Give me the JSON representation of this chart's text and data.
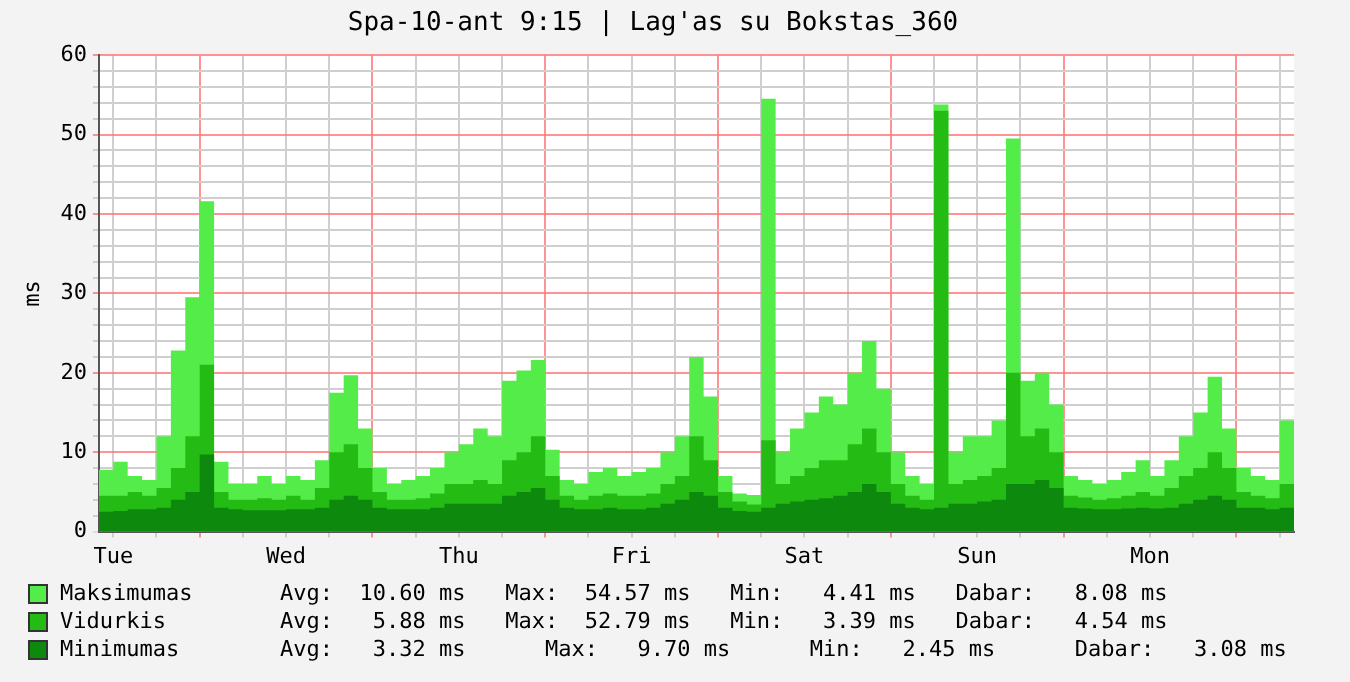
{
  "chart_data": {
    "type": "area",
    "title": "Spa-10-ant 9:15 | Lag'as su Bokstas_360",
    "ylabel": "ms",
    "categories": [
      null,
      "Tue",
      null,
      null,
      null,
      null,
      null,
      null,
      null,
      null,
      null,
      null,
      null,
      "Wed",
      null,
      null,
      null,
      null,
      null,
      null,
      null,
      null,
      null,
      null,
      null,
      "Thu",
      null,
      null,
      null,
      null,
      null,
      null,
      null,
      null,
      null,
      null,
      null,
      "Fri",
      null,
      null,
      null,
      null,
      null,
      null,
      null,
      null,
      null,
      null,
      null,
      "Sat",
      null,
      null,
      null,
      null,
      null,
      null,
      null,
      null,
      null,
      null,
      null,
      "Sun",
      null,
      null,
      null,
      null,
      null,
      null,
      null,
      null,
      null,
      null,
      null,
      "Mon",
      null,
      null,
      null,
      null,
      null,
      null,
      null,
      null,
      null,
      null
    ],
    "series": [
      {
        "name": "Maksimumas",
        "color": "#54ec48",
        "values": [
          7.8,
          8.8,
          7,
          6.5,
          12,
          22.8,
          29.5,
          41.6,
          8.8,
          6,
          6,
          7,
          6,
          7,
          6.5,
          9,
          17.5,
          19.7,
          13,
          8,
          6,
          6.5,
          7,
          8,
          10,
          11,
          13,
          12,
          19,
          20.3,
          21.6,
          10.3,
          6.5,
          6,
          7.5,
          8,
          7,
          7.5,
          8,
          10,
          12,
          22,
          17,
          7,
          4.8,
          4.6,
          54.5,
          10,
          13,
          15,
          17,
          16,
          20,
          24,
          18,
          10,
          7,
          6,
          53.8,
          10,
          12,
          12,
          14,
          49.5,
          19,
          20,
          16,
          7,
          6.5,
          6,
          6.5,
          7.5,
          9,
          7,
          9,
          12,
          15,
          19.5,
          13,
          8,
          7,
          6.5,
          14,
          8
        ]
      },
      {
        "name": "Vidurkis",
        "color": "#24bc14",
        "values": [
          4.5,
          4.5,
          5,
          4.5,
          5.5,
          8,
          12,
          21,
          5,
          4,
          4,
          4.2,
          4,
          4.5,
          4,
          5.5,
          10,
          11,
          8,
          5,
          4,
          4,
          4.2,
          4.8,
          6,
          6,
          6.5,
          6,
          9,
          10,
          12,
          7,
          4.5,
          4,
          4.5,
          4.8,
          4.5,
          4.5,
          4.8,
          6,
          7,
          12,
          9,
          5,
          3.8,
          3.4,
          11.5,
          6,
          7,
          8,
          9,
          9,
          11,
          13,
          10,
          6,
          4.5,
          4,
          53,
          6,
          6.5,
          7,
          8,
          20,
          12,
          13,
          10,
          4.5,
          4.3,
          4,
          4.2,
          4.5,
          5,
          4.5,
          5.5,
          7,
          8,
          10,
          8,
          5,
          4.5,
          4.2,
          6,
          4.5
        ]
      },
      {
        "name": "Minimumas",
        "color": "#0d8a0d",
        "values": [
          2.5,
          2.6,
          2.8,
          2.8,
          3,
          4,
          5,
          9.7,
          3,
          2.8,
          2.7,
          2.7,
          2.7,
          2.8,
          2.8,
          3,
          4,
          4.5,
          4,
          3,
          2.8,
          2.8,
          2.8,
          3,
          3.5,
          3.5,
          3.5,
          3.5,
          4.5,
          5,
          5.5,
          4,
          3,
          2.8,
          2.8,
          3,
          2.8,
          2.8,
          3,
          3.5,
          4,
          5,
          4.5,
          3,
          2.6,
          2.5,
          3,
          3.5,
          3.8,
          4,
          4.2,
          4.5,
          5,
          6,
          5,
          3.5,
          3,
          2.8,
          3,
          3.5,
          3.5,
          3.8,
          4,
          6,
          6,
          6.5,
          5.5,
          3,
          2.9,
          2.8,
          2.8,
          2.9,
          3,
          2.9,
          3,
          3.5,
          4,
          4.5,
          4,
          3,
          3,
          2.8,
          3,
          3
        ]
      }
    ],
    "ylim": [
      0,
      60
    ],
    "yticks": [
      0,
      {
        "value": 2,
        "label": null
      },
      {
        "value": 4,
        "label": null
      },
      {
        "value": 6,
        "label": null
      },
      {
        "value": 8,
        "label": null
      },
      10,
      {
        "value": 12,
        "label": null
      },
      {
        "value": 14,
        "label": null
      },
      {
        "value": 16,
        "label": null
      },
      {
        "value": 18,
        "label": null
      },
      20,
      {
        "value": 22,
        "label": null
      },
      {
        "value": 24,
        "label": null
      },
      {
        "value": 26,
        "label": null
      },
      {
        "value": 28,
        "label": null
      },
      30,
      {
        "value": 32,
        "label": null
      },
      {
        "value": 34,
        "label": null
      },
      {
        "value": 36,
        "label": null
      },
      {
        "value": 38,
        "label": null
      },
      40,
      {
        "value": 42,
        "label": null
      },
      {
        "value": 44,
        "label": null
      },
      {
        "value": 46,
        "label": null
      },
      {
        "value": 48,
        "label": null
      },
      50,
      {
        "value": 52,
        "label": null
      },
      {
        "value": 54,
        "label": null
      },
      {
        "value": 56,
        "label": null
      },
      {
        "value": 58,
        "label": null
      },
      60
    ],
    "grid": true,
    "legend": "bottom",
    "marker": "none",
    "annotations": [
      "Avg:  10.60 ms   Max:  54.57 ms   Min:   4.41 ms   Dabar:   8.08 ms",
      "Avg:   5.88 ms   Max:  52.79 ms   Min:   3.39 ms   Dabar:   4.54 ms",
      "Avg:   3.32 ms      Max:   9.70 ms      Min:   2.45 ms      Dabar:   3.08 ms"
    ]
  }
}
